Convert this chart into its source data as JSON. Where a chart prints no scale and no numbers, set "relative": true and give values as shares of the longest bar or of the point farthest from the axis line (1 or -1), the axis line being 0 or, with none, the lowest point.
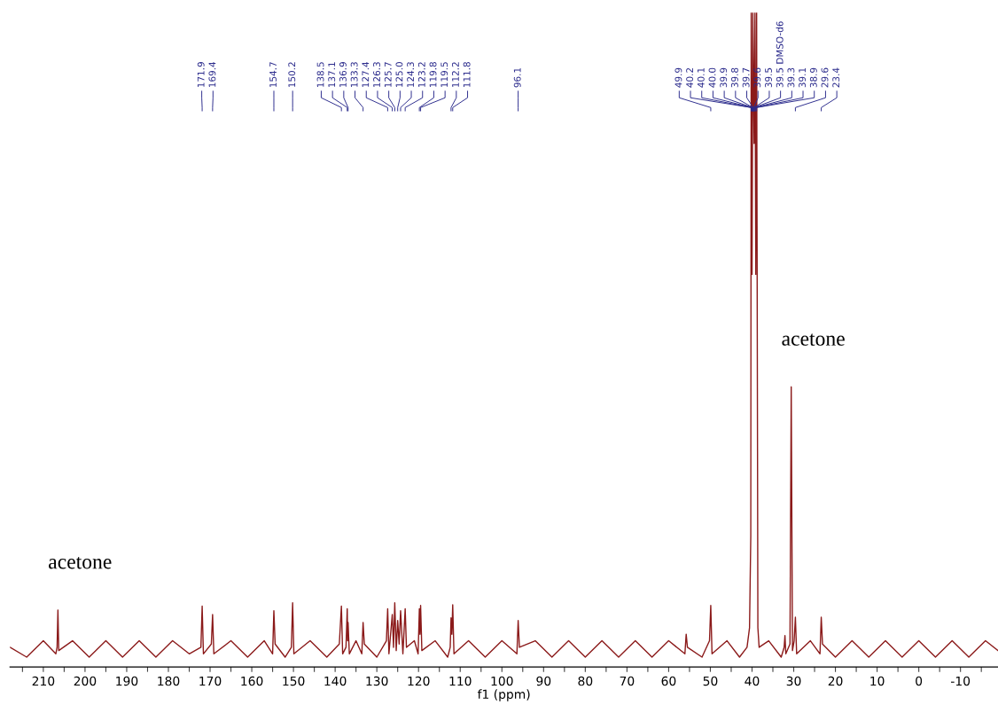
{
  "chart_data": {
    "type": "line",
    "relative": true,
    "xlabel": "f1 (ppm)",
    "xlim": [
      218,
      -19
    ],
    "xticks": [
      {
        "value": 215,
        "label": null
      },
      210,
      {
        "value": 205,
        "label": null
      },
      200,
      {
        "value": 195,
        "label": null
      },
      190,
      {
        "value": 185,
        "label": null
      },
      180,
      {
        "value": 175,
        "label": null
      },
      170,
      {
        "value": 165,
        "label": null
      },
      160,
      {
        "value": 155,
        "label": null
      },
      150,
      {
        "value": 145,
        "label": null
      },
      140,
      {
        "value": 135,
        "label": null
      },
      130,
      {
        "value": 125,
        "label": null
      },
      120,
      {
        "value": 115,
        "label": null
      },
      110,
      {
        "value": 105,
        "label": null
      },
      100,
      {
        "value": 95,
        "label": null
      },
      90,
      {
        "value": 85,
        "label": null
      },
      80,
      {
        "value": 75,
        "label": null
      },
      70,
      {
        "value": 65,
        "label": null
      },
      60,
      {
        "value": 55,
        "label": null
      },
      50,
      {
        "value": 45,
        "label": null
      },
      40,
      {
        "value": 35,
        "label": null
      },
      30,
      {
        "value": 25,
        "label": null
      },
      20,
      {
        "value": 15,
        "label": null
      },
      10,
      {
        "value": 5,
        "label": null
      },
      0,
      {
        "value": -5,
        "label": null
      },
      -10,
      {
        "value": -15,
        "label": null
      }
    ],
    "grid": false,
    "legend": false,
    "marker": "none",
    "line_style": "solid",
    "series": [
      {
        "color": "#8b1a1a",
        "x": [
          218,
          214,
          210,
          207,
          206.7,
          206.5,
          206.3,
          203,
          199,
          195,
          191,
          187,
          183,
          179,
          175,
          172.2,
          171.9,
          171.6,
          169.7,
          169.4,
          169.1,
          165,
          161,
          157,
          155.0,
          154.7,
          154.4,
          152,
          150.5,
          150.2,
          149.9,
          146,
          142,
          139,
          138.5,
          138.2,
          137.4,
          137.1,
          137.0,
          136.9,
          136.6,
          135,
          133.6,
          133.3,
          133.0,
          130,
          127.7,
          127.4,
          127.1,
          126.3,
          126.0,
          125.7,
          125.35,
          125.0,
          124.65,
          124.3,
          123.75,
          123.2,
          122.9,
          121,
          120.1,
          119.8,
          119.65,
          119.5,
          119.2,
          116,
          113,
          112.4,
          112.2,
          112.0,
          111.8,
          111.5,
          108,
          104,
          100,
          96.4,
          96.1,
          95.8,
          92,
          88,
          84,
          80,
          76,
          72,
          68,
          64,
          60,
          56.1,
          55.8,
          55.5,
          52,
          50.2,
          49.9,
          49.6,
          46,
          43,
          41.2,
          40.6,
          40.3,
          40.2,
          40.0,
          39.8,
          39.5,
          39.3,
          39.1,
          38.9,
          38.6,
          38.3,
          36,
          33,
          32.3,
          32.1,
          31.9,
          30.9,
          30.6,
          30.3,
          29.9,
          29.6,
          29.3,
          26,
          23.7,
          23.4,
          23.1,
          20,
          16,
          12,
          8,
          4,
          0,
          -4,
          -8,
          -12,
          -16,
          -19
        ],
        "values": [
          0.03,
          0.015,
          0.04,
          0.02,
          0.03,
          0.087,
          0.025,
          0.04,
          0.015,
          0.04,
          0.015,
          0.04,
          0.015,
          0.04,
          0.02,
          0.03,
          0.093,
          0.02,
          0.035,
          0.08,
          0.02,
          0.04,
          0.015,
          0.04,
          0.02,
          0.086,
          0.035,
          0.015,
          0.03,
          0.098,
          0.02,
          0.04,
          0.015,
          0.035,
          0.093,
          0.02,
          0.03,
          0.089,
          0.04,
          0.068,
          0.02,
          0.04,
          0.02,
          0.068,
          0.035,
          0.015,
          0.04,
          0.089,
          0.02,
          0.08,
          0.03,
          0.098,
          0.025,
          0.071,
          0.035,
          0.086,
          0.02,
          0.089,
          0.03,
          0.04,
          0.02,
          0.089,
          0.05,
          0.094,
          0.025,
          0.04,
          0.015,
          0.03,
          0.075,
          0.05,
          0.095,
          0.02,
          0.04,
          0.015,
          0.04,
          0.02,
          0.071,
          0.03,
          0.04,
          0.015,
          0.04,
          0.015,
          0.04,
          0.015,
          0.04,
          0.015,
          0.04,
          0.02,
          0.05,
          0.03,
          0.015,
          0.04,
          0.094,
          0.02,
          0.04,
          0.015,
          0.03,
          0.06,
          0.2,
          1.0,
          0.6,
          1.0,
          0.8,
          1.0,
          0.6,
          1.0,
          0.06,
          0.03,
          0.04,
          0.015,
          0.03,
          0.048,
          0.02,
          0.035,
          0.428,
          0.025,
          0.04,
          0.076,
          0.02,
          0.04,
          0.02,
          0.076,
          0.035,
          0.015,
          0.04,
          0.015,
          0.04,
          0.015,
          0.04,
          0.015,
          0.04,
          0.015,
          0.04,
          0.025
        ]
      }
    ],
    "annotations": [
      {
        "text": "acetone",
        "x": 206.5,
        "y": 0.087
      },
      {
        "text": "acetone",
        "x": 30.6,
        "y": 0.428
      },
      {
        "text": "171.9",
        "x": 171.9
      },
      {
        "text": "169.4",
        "x": 169.4
      },
      {
        "text": "154.7",
        "x": 154.7
      },
      {
        "text": "150.2",
        "x": 150.2
      },
      {
        "text": "138.5",
        "x": 138.5
      },
      {
        "text": "137.1",
        "x": 137.1
      },
      {
        "text": "136.9",
        "x": 136.9
      },
      {
        "text": "133.3",
        "x": 133.3
      },
      {
        "text": "127.4",
        "x": 127.4
      },
      {
        "text": "126.3",
        "x": 126.3
      },
      {
        "text": "125.7",
        "x": 125.7
      },
      {
        "text": "125.0",
        "x": 125.0
      },
      {
        "text": "124.3",
        "x": 124.3
      },
      {
        "text": "123.2",
        "x": 123.2
      },
      {
        "text": "119.8",
        "x": 119.8
      },
      {
        "text": "119.5",
        "x": 119.5
      },
      {
        "text": "112.2",
        "x": 112.2
      },
      {
        "text": "111.8",
        "x": 111.8
      },
      {
        "text": "96.1",
        "x": 96.1
      },
      {
        "text": "49.9",
        "x": 49.9
      },
      {
        "text": "40.2",
        "x": 40.2
      },
      {
        "text": "40.1",
        "x": 40.1
      },
      {
        "text": "40.0",
        "x": 40.0
      },
      {
        "text": "39.9",
        "x": 39.9
      },
      {
        "text": "39.8",
        "x": 39.8
      },
      {
        "text": "39.7",
        "x": 39.7
      },
      {
        "text": "39.6",
        "x": 39.6
      },
      {
        "text": "39.5",
        "x": 39.5
      },
      {
        "text": "39.5 DMSO-d6",
        "x": 39.5
      },
      {
        "text": "39.3",
        "x": 39.3
      },
      {
        "text": "39.1",
        "x": 39.1
      },
      {
        "text": "38.9",
        "x": 38.9
      },
      {
        "text": "29.6",
        "x": 29.6
      },
      {
        "text": "23.4",
        "x": 23.4
      }
    ]
  }
}
